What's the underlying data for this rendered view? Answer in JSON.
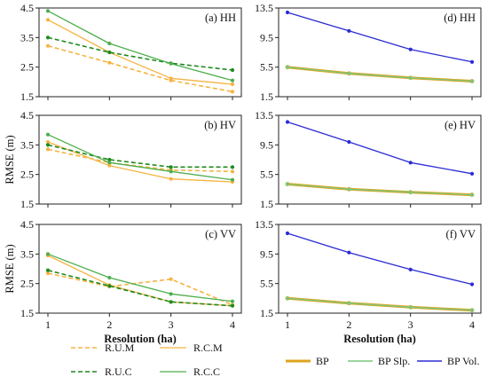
{
  "chart_data": [
    {
      "type": "line",
      "panel": "(a) HH",
      "x": [
        1,
        2,
        3,
        4
      ],
      "xticks": [
        1,
        2,
        3,
        4
      ],
      "xticklabels": [
        "",
        "",
        "",
        ""
      ],
      "xlabel": "",
      "ylabel": "",
      "ylim": [
        1.5,
        4.5
      ],
      "yticks": [
        1.5,
        2.5,
        3.5,
        4.5
      ],
      "yticklabels": [
        "1.5",
        "2.5",
        "3.5",
        "4.5"
      ],
      "series": [
        {
          "name": "R.U.M",
          "color": "#f5b342",
          "dash": true,
          "values": [
            3.22,
            2.65,
            2.05,
            1.67
          ]
        },
        {
          "name": "R.C.M",
          "color": "#f5b342",
          "dash": false,
          "values": [
            4.1,
            3.0,
            2.12,
            1.92
          ]
        },
        {
          "name": "R.U.C",
          "color": "#1e8a1e",
          "dash": true,
          "values": [
            3.5,
            3.0,
            2.63,
            2.4
          ]
        },
        {
          "name": "R.C.C",
          "color": "#4cae4c",
          "dash": false,
          "values": [
            4.4,
            3.3,
            2.62,
            2.05
          ]
        }
      ]
    },
    {
      "type": "line",
      "panel": "(b) HV",
      "x": [
        1,
        2,
        3,
        4
      ],
      "xticks": [
        1,
        2,
        3,
        4
      ],
      "xticklabels": [
        "",
        "",
        "",
        ""
      ],
      "xlabel": "",
      "ylabel": "RMSE (m)",
      "ylim": [
        1.5,
        4.5
      ],
      "yticks": [
        1.5,
        2.5,
        3.5,
        4.5
      ],
      "yticklabels": [
        "1.5",
        "2.5",
        "3.5",
        "4.5"
      ],
      "series": [
        {
          "name": "R.U.M",
          "color": "#f5b342",
          "dash": true,
          "values": [
            3.35,
            2.9,
            2.65,
            2.6
          ]
        },
        {
          "name": "R.C.M",
          "color": "#f5b342",
          "dash": false,
          "values": [
            3.6,
            2.8,
            2.35,
            2.25
          ]
        },
        {
          "name": "R.U.C",
          "color": "#1e8a1e",
          "dash": true,
          "values": [
            3.5,
            3.0,
            2.75,
            2.75
          ]
        },
        {
          "name": "R.C.C",
          "color": "#4cae4c",
          "dash": false,
          "values": [
            3.85,
            2.9,
            2.6,
            2.32
          ]
        }
      ]
    },
    {
      "type": "line",
      "panel": "(c) VV",
      "x": [
        1,
        2,
        3,
        4
      ],
      "xticks": [
        1,
        2,
        3,
        4
      ],
      "xticklabels": [
        "1",
        "2",
        "3",
        "4"
      ],
      "xlabel": "Resolution (ha)",
      "ylabel": "RMSE (m)",
      "ylim": [
        1.5,
        4.5
      ],
      "yticks": [
        1.5,
        2.5,
        3.5,
        4.5
      ],
      "yticklabels": [
        "1.5",
        "2.5",
        "3.5",
        "4.5"
      ],
      "series": [
        {
          "name": "R.U.M",
          "color": "#f5b342",
          "dash": true,
          "values": [
            2.85,
            2.4,
            2.65,
            1.78
          ]
        },
        {
          "name": "R.C.M",
          "color": "#f5b342",
          "dash": false,
          "values": [
            3.45,
            2.45,
            1.88,
            1.75
          ]
        },
        {
          "name": "R.U.C",
          "color": "#1e8a1e",
          "dash": true,
          "values": [
            2.95,
            2.42,
            1.88,
            1.75
          ]
        },
        {
          "name": "R.C.C",
          "color": "#4cae4c",
          "dash": false,
          "values": [
            3.5,
            2.7,
            2.15,
            1.9
          ]
        }
      ]
    },
    {
      "type": "line",
      "panel": "(d) HH",
      "x": [
        1,
        2,
        3,
        4
      ],
      "xticks": [
        1,
        2,
        3,
        4
      ],
      "xticklabels": [
        "",
        "",
        "",
        ""
      ],
      "xlabel": "",
      "ylabel": "",
      "ylim": [
        1.5,
        13.5
      ],
      "yticks": [
        1.5,
        5.5,
        9.5,
        13.5
      ],
      "yticklabels": [
        "1.5",
        "5.5",
        "9.5",
        "13.5"
      ],
      "series": [
        {
          "name": "BP",
          "color": "#e0a41c",
          "dash": false,
          "values": [
            5.5,
            4.65,
            4.05,
            3.6
          ]
        },
        {
          "name": "BP Slp.",
          "color": "#7cc77c",
          "dash": false,
          "values": [
            5.5,
            4.65,
            4.05,
            3.6
          ]
        },
        {
          "name": "BP Vol.",
          "color": "#2b2bd6",
          "dash": false,
          "values": [
            12.9,
            10.4,
            7.9,
            6.2
          ]
        }
      ]
    },
    {
      "type": "line",
      "panel": "(e) HV",
      "x": [
        1,
        2,
        3,
        4
      ],
      "xticks": [
        1,
        2,
        3,
        4
      ],
      "xticklabels": [
        "",
        "",
        "",
        ""
      ],
      "xlabel": "",
      "ylabel": "",
      "ylim": [
        1.5,
        13.5
      ],
      "yticks": [
        1.5,
        5.5,
        9.5,
        13.5
      ],
      "yticklabels": [
        "1.5",
        "5.5",
        "9.5",
        "13.5"
      ],
      "series": [
        {
          "name": "BP",
          "color": "#e0a41c",
          "dash": false,
          "values": [
            4.2,
            3.5,
            3.1,
            2.75
          ]
        },
        {
          "name": "BP Slp.",
          "color": "#7cc77c",
          "dash": false,
          "values": [
            4.2,
            3.5,
            3.1,
            2.75
          ]
        },
        {
          "name": "BP Vol.",
          "color": "#2b2bd6",
          "dash": false,
          "values": [
            12.6,
            9.9,
            7.1,
            5.6
          ]
        }
      ]
    },
    {
      "type": "line",
      "panel": "(f) VV",
      "x": [
        1,
        2,
        3,
        4
      ],
      "xticks": [
        1,
        2,
        3,
        4
      ],
      "xticklabels": [
        "1",
        "2",
        "3",
        "4"
      ],
      "xlabel": "Resolution (ha)",
      "ylabel": "",
      "ylim": [
        1.5,
        13.5
      ],
      "yticks": [
        1.5,
        5.5,
        9.5,
        13.5
      ],
      "yticklabels": [
        "1.5",
        "5.5",
        "9.5",
        "13.5"
      ],
      "series": [
        {
          "name": "BP",
          "color": "#e0a41c",
          "dash": false,
          "values": [
            3.5,
            2.85,
            2.3,
            1.9
          ]
        },
        {
          "name": "BP Slp.",
          "color": "#7cc77c",
          "dash": false,
          "values": [
            3.5,
            2.85,
            2.3,
            1.9
          ]
        },
        {
          "name": "BP Vol.",
          "color": "#2b2bd6",
          "dash": false,
          "values": [
            12.3,
            9.7,
            7.4,
            5.4
          ]
        }
      ]
    }
  ],
  "legend_left": [
    {
      "name": "R.U.M",
      "color": "#f5b342",
      "dash": true
    },
    {
      "name": "R.C.M",
      "color": "#f5b342",
      "dash": false
    },
    {
      "name": "R.U.C",
      "color": "#1e8a1e",
      "dash": true
    },
    {
      "name": "R.C.C",
      "color": "#4cae4c",
      "dash": false
    }
  ],
  "legend_right": [
    {
      "name": "BP",
      "color": "#e0a41c",
      "width": 3
    },
    {
      "name": "BP Slp.",
      "color": "#7cc77c",
      "width": 1.5
    },
    {
      "name": "BP Vol.",
      "color": "#2b2bd6",
      "width": 1.5
    }
  ]
}
